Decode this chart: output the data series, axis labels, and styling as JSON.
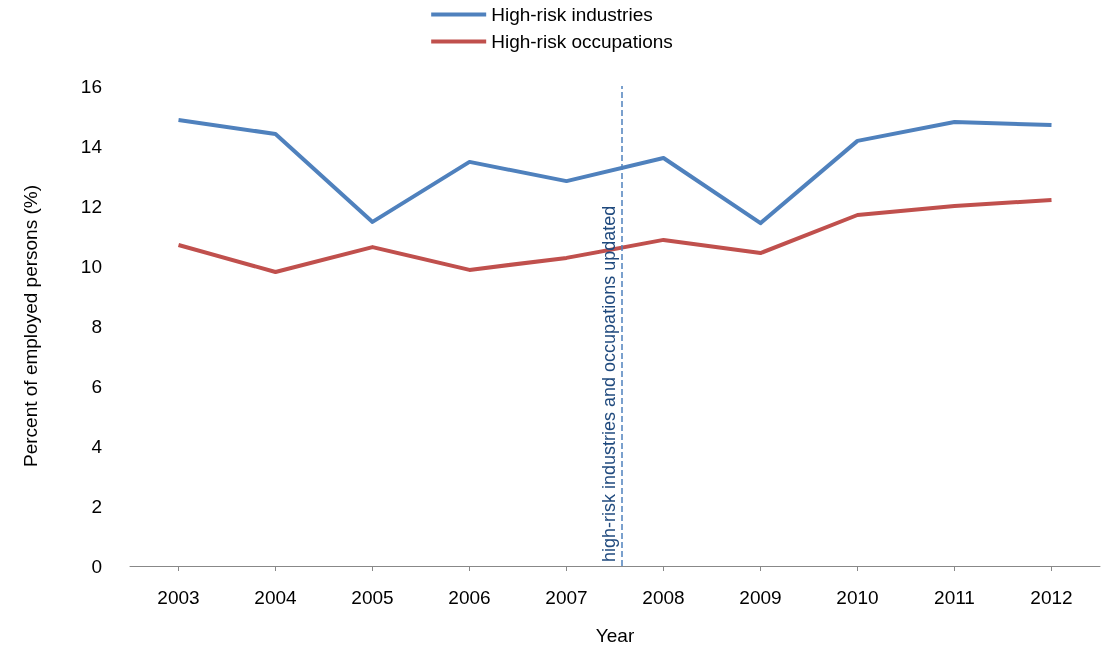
{
  "chart_data": {
    "type": "line",
    "xlabel": "Year",
    "ylabel": "Percent of employed persons (%)",
    "x": [
      2003,
      2004,
      2005,
      2006,
      2007,
      2008,
      2009,
      2010,
      2011,
      2012
    ],
    "series": [
      {
        "name": "High-risk industries",
        "color": "#4f81bd",
        "values": [
          14.87,
          14.4,
          11.47,
          13.47,
          12.83,
          13.6,
          11.43,
          14.17,
          14.8,
          14.7
        ]
      },
      {
        "name": "High-risk occupations",
        "color": "#c0504d",
        "values": [
          10.7,
          9.8,
          10.63,
          9.87,
          10.27,
          10.87,
          10.43,
          11.7,
          12.0,
          12.2
        ]
      }
    ],
    "xlim": [
      2002.5,
      2012.5
    ],
    "xticks": [
      2003,
      2004,
      2005,
      2006,
      2007,
      2008,
      2009,
      2010,
      2011,
      2012
    ],
    "ylim": [
      0,
      16
    ],
    "yticks": [
      0,
      2,
      4,
      6,
      8,
      10,
      12,
      14,
      16
    ],
    "ref_lines": [
      {
        "axis": "x",
        "value": 2007.57,
        "label": "high-risk industries and occupations updated",
        "color": "#4f81bd",
        "line_style": "dashed"
      }
    ],
    "grid": false,
    "legend": "top",
    "marker": "none",
    "line_style": "solid"
  }
}
